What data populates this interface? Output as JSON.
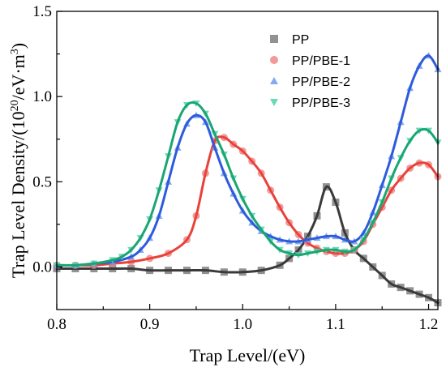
{
  "chart_data": {
    "type": "scatter",
    "xlabel": "Trap Level/(eV)",
    "ylabel_prefix": "Trap Level Density/(10",
    "ylabel_sup1": "20",
    "ylabel_mid": "/eV·m",
    "ylabel_sup2": "3",
    "ylabel_suffix": ")",
    "xlim": [
      0.8,
      1.21
    ],
    "ylim": [
      -0.25,
      1.5
    ],
    "xticks": [
      0.8,
      0.9,
      1.0,
      1.1,
      1.2
    ],
    "xtick_labels": [
      "0.8",
      "0.9",
      "1.0",
      "1.1",
      "1.2"
    ],
    "yticks": [
      0.0,
      0.5,
      1.0,
      1.5
    ],
    "ytick_labels": [
      "0.0",
      "0.5",
      "1.0",
      "1.5"
    ],
    "grid": false,
    "legend_position": "top-right",
    "series": [
      {
        "name": "PP",
        "marker": "square",
        "color": "#7f7f7f",
        "line_color": "#3a3a3a",
        "x": [
          0.8,
          0.82,
          0.84,
          0.86,
          0.88,
          0.9,
          0.92,
          0.94,
          0.96,
          0.98,
          1.0,
          1.02,
          1.04,
          1.05,
          1.06,
          1.07,
          1.08,
          1.09,
          1.1,
          1.11,
          1.12,
          1.13,
          1.14,
          1.15,
          1.16,
          1.17,
          1.18,
          1.19,
          1.2,
          1.21
        ],
        "y": [
          -0.01,
          -0.01,
          -0.01,
          -0.01,
          -0.01,
          -0.02,
          -0.02,
          -0.02,
          -0.02,
          -0.03,
          -0.03,
          -0.02,
          0.01,
          0.05,
          0.1,
          0.18,
          0.3,
          0.47,
          0.38,
          0.2,
          0.1,
          0.05,
          0.0,
          -0.05,
          -0.1,
          -0.12,
          -0.14,
          -0.16,
          -0.18,
          -0.21
        ]
      },
      {
        "name": "PP/PBE-1",
        "marker": "circle",
        "color": "#f08080",
        "line_color": "#e8423a",
        "x": [
          0.8,
          0.82,
          0.84,
          0.86,
          0.88,
          0.9,
          0.92,
          0.94,
          0.95,
          0.96,
          0.97,
          0.98,
          0.99,
          1.0,
          1.01,
          1.02,
          1.03,
          1.04,
          1.05,
          1.06,
          1.07,
          1.08,
          1.09,
          1.1,
          1.11,
          1.12,
          1.13,
          1.14,
          1.15,
          1.16,
          1.17,
          1.18,
          1.19,
          1.2,
          1.21
        ],
        "y": [
          0.01,
          0.01,
          0.01,
          0.02,
          0.03,
          0.05,
          0.08,
          0.16,
          0.3,
          0.55,
          0.74,
          0.76,
          0.72,
          0.68,
          0.62,
          0.55,
          0.45,
          0.35,
          0.26,
          0.19,
          0.14,
          0.11,
          0.09,
          0.08,
          0.08,
          0.1,
          0.15,
          0.25,
          0.35,
          0.45,
          0.52,
          0.58,
          0.61,
          0.6,
          0.53
        ]
      },
      {
        "name": "PP/PBE-2",
        "marker": "triangle-up",
        "color": "#6f9bef",
        "line_color": "#2d5bdc",
        "x": [
          0.8,
          0.82,
          0.84,
          0.86,
          0.88,
          0.89,
          0.9,
          0.91,
          0.92,
          0.93,
          0.94,
          0.95,
          0.96,
          0.97,
          0.98,
          0.99,
          1.0,
          1.01,
          1.02,
          1.03,
          1.04,
          1.05,
          1.06,
          1.07,
          1.08,
          1.09,
          1.1,
          1.11,
          1.12,
          1.13,
          1.14,
          1.15,
          1.16,
          1.17,
          1.18,
          1.19,
          1.2,
          1.21
        ],
        "y": [
          0.01,
          0.01,
          0.02,
          0.03,
          0.06,
          0.1,
          0.17,
          0.3,
          0.5,
          0.7,
          0.84,
          0.89,
          0.85,
          0.7,
          0.55,
          0.43,
          0.33,
          0.26,
          0.21,
          0.18,
          0.16,
          0.15,
          0.15,
          0.16,
          0.17,
          0.18,
          0.18,
          0.16,
          0.15,
          0.2,
          0.32,
          0.48,
          0.65,
          0.85,
          1.05,
          1.18,
          1.24,
          1.16
        ]
      },
      {
        "name": "PP/PBE-3",
        "marker": "triangle-down",
        "color": "#4fd3a8",
        "line_color": "#1aa672",
        "x": [
          0.8,
          0.82,
          0.84,
          0.86,
          0.87,
          0.88,
          0.89,
          0.9,
          0.91,
          0.92,
          0.93,
          0.94,
          0.95,
          0.96,
          0.97,
          0.98,
          0.99,
          1.0,
          1.01,
          1.02,
          1.03,
          1.04,
          1.05,
          1.06,
          1.07,
          1.08,
          1.09,
          1.1,
          1.11,
          1.12,
          1.13,
          1.14,
          1.15,
          1.16,
          1.17,
          1.18,
          1.19,
          1.2,
          1.21
        ],
        "y": [
          0.01,
          0.01,
          0.02,
          0.04,
          0.06,
          0.1,
          0.17,
          0.28,
          0.45,
          0.65,
          0.85,
          0.95,
          0.96,
          0.9,
          0.78,
          0.66,
          0.52,
          0.4,
          0.3,
          0.22,
          0.15,
          0.1,
          0.08,
          0.07,
          0.08,
          0.09,
          0.1,
          0.1,
          0.09,
          0.1,
          0.16,
          0.26,
          0.38,
          0.52,
          0.64,
          0.74,
          0.8,
          0.8,
          0.73
        ]
      }
    ]
  }
}
